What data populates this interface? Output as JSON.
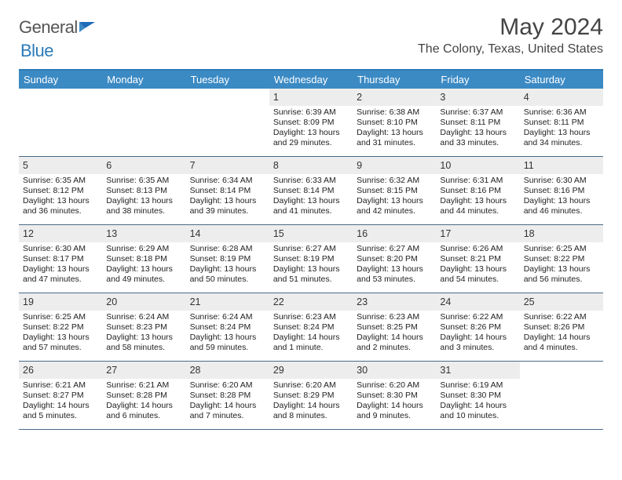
{
  "brand": {
    "word1": "General",
    "word2": "Blue"
  },
  "title": "May 2024",
  "location": "The Colony, Texas, United States",
  "colors": {
    "header_bg": "#3b8ac4",
    "header_border": "#2a7ab8",
    "week_divider": "#4a6a8a",
    "daynum_bg": "#ededed",
    "text": "#333333"
  },
  "day_names": [
    "Sunday",
    "Monday",
    "Tuesday",
    "Wednesday",
    "Thursday",
    "Friday",
    "Saturday"
  ],
  "weeks": [
    [
      {
        "n": "",
        "empty": true
      },
      {
        "n": "",
        "empty": true
      },
      {
        "n": "",
        "empty": true
      },
      {
        "n": "1",
        "sunrise": "6:39 AM",
        "sunset": "8:09 PM",
        "daylight": "13 hours and 29 minutes."
      },
      {
        "n": "2",
        "sunrise": "6:38 AM",
        "sunset": "8:10 PM",
        "daylight": "13 hours and 31 minutes."
      },
      {
        "n": "3",
        "sunrise": "6:37 AM",
        "sunset": "8:11 PM",
        "daylight": "13 hours and 33 minutes."
      },
      {
        "n": "4",
        "sunrise": "6:36 AM",
        "sunset": "8:11 PM",
        "daylight": "13 hours and 34 minutes."
      }
    ],
    [
      {
        "n": "5",
        "sunrise": "6:35 AM",
        "sunset": "8:12 PM",
        "daylight": "13 hours and 36 minutes."
      },
      {
        "n": "6",
        "sunrise": "6:35 AM",
        "sunset": "8:13 PM",
        "daylight": "13 hours and 38 minutes."
      },
      {
        "n": "7",
        "sunrise": "6:34 AM",
        "sunset": "8:14 PM",
        "daylight": "13 hours and 39 minutes."
      },
      {
        "n": "8",
        "sunrise": "6:33 AM",
        "sunset": "8:14 PM",
        "daylight": "13 hours and 41 minutes."
      },
      {
        "n": "9",
        "sunrise": "6:32 AM",
        "sunset": "8:15 PM",
        "daylight": "13 hours and 42 minutes."
      },
      {
        "n": "10",
        "sunrise": "6:31 AM",
        "sunset": "8:16 PM",
        "daylight": "13 hours and 44 minutes."
      },
      {
        "n": "11",
        "sunrise": "6:30 AM",
        "sunset": "8:16 PM",
        "daylight": "13 hours and 46 minutes."
      }
    ],
    [
      {
        "n": "12",
        "sunrise": "6:30 AM",
        "sunset": "8:17 PM",
        "daylight": "13 hours and 47 minutes."
      },
      {
        "n": "13",
        "sunrise": "6:29 AM",
        "sunset": "8:18 PM",
        "daylight": "13 hours and 49 minutes."
      },
      {
        "n": "14",
        "sunrise": "6:28 AM",
        "sunset": "8:19 PM",
        "daylight": "13 hours and 50 minutes."
      },
      {
        "n": "15",
        "sunrise": "6:27 AM",
        "sunset": "8:19 PM",
        "daylight": "13 hours and 51 minutes."
      },
      {
        "n": "16",
        "sunrise": "6:27 AM",
        "sunset": "8:20 PM",
        "daylight": "13 hours and 53 minutes."
      },
      {
        "n": "17",
        "sunrise": "6:26 AM",
        "sunset": "8:21 PM",
        "daylight": "13 hours and 54 minutes."
      },
      {
        "n": "18",
        "sunrise": "6:25 AM",
        "sunset": "8:22 PM",
        "daylight": "13 hours and 56 minutes."
      }
    ],
    [
      {
        "n": "19",
        "sunrise": "6:25 AM",
        "sunset": "8:22 PM",
        "daylight": "13 hours and 57 minutes."
      },
      {
        "n": "20",
        "sunrise": "6:24 AM",
        "sunset": "8:23 PM",
        "daylight": "13 hours and 58 minutes."
      },
      {
        "n": "21",
        "sunrise": "6:24 AM",
        "sunset": "8:24 PM",
        "daylight": "13 hours and 59 minutes."
      },
      {
        "n": "22",
        "sunrise": "6:23 AM",
        "sunset": "8:24 PM",
        "daylight": "14 hours and 1 minute."
      },
      {
        "n": "23",
        "sunrise": "6:23 AM",
        "sunset": "8:25 PM",
        "daylight": "14 hours and 2 minutes."
      },
      {
        "n": "24",
        "sunrise": "6:22 AM",
        "sunset": "8:26 PM",
        "daylight": "14 hours and 3 minutes."
      },
      {
        "n": "25",
        "sunrise": "6:22 AM",
        "sunset": "8:26 PM",
        "daylight": "14 hours and 4 minutes."
      }
    ],
    [
      {
        "n": "26",
        "sunrise": "6:21 AM",
        "sunset": "8:27 PM",
        "daylight": "14 hours and 5 minutes."
      },
      {
        "n": "27",
        "sunrise": "6:21 AM",
        "sunset": "8:28 PM",
        "daylight": "14 hours and 6 minutes."
      },
      {
        "n": "28",
        "sunrise": "6:20 AM",
        "sunset": "8:28 PM",
        "daylight": "14 hours and 7 minutes."
      },
      {
        "n": "29",
        "sunrise": "6:20 AM",
        "sunset": "8:29 PM",
        "daylight": "14 hours and 8 minutes."
      },
      {
        "n": "30",
        "sunrise": "6:20 AM",
        "sunset": "8:30 PM",
        "daylight": "14 hours and 9 minutes."
      },
      {
        "n": "31",
        "sunrise": "6:19 AM",
        "sunset": "8:30 PM",
        "daylight": "14 hours and 10 minutes."
      },
      {
        "n": "",
        "empty": true
      }
    ]
  ],
  "labels": {
    "sunrise": "Sunrise:",
    "sunset": "Sunset:",
    "daylight": "Daylight:"
  }
}
